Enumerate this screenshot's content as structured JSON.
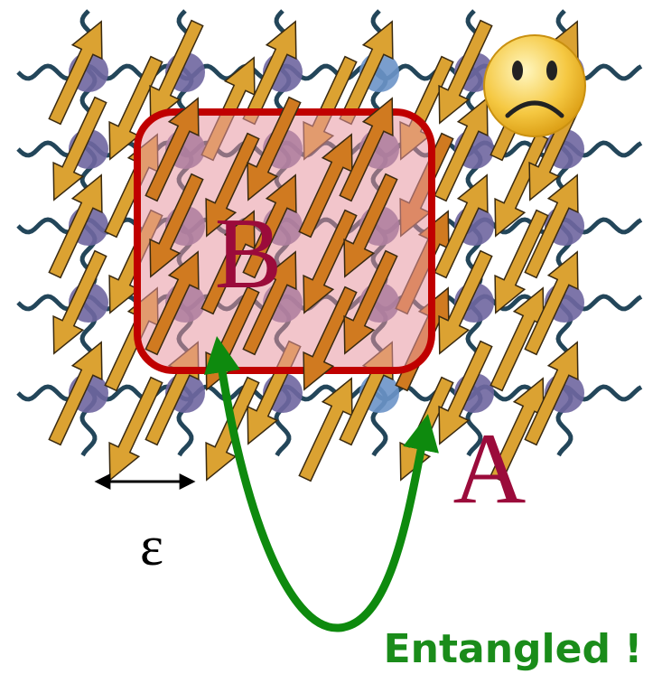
{
  "labels": {
    "region_b": "B",
    "region_a": "A",
    "spacing": "ε",
    "caption": "Entangled !"
  }
}
